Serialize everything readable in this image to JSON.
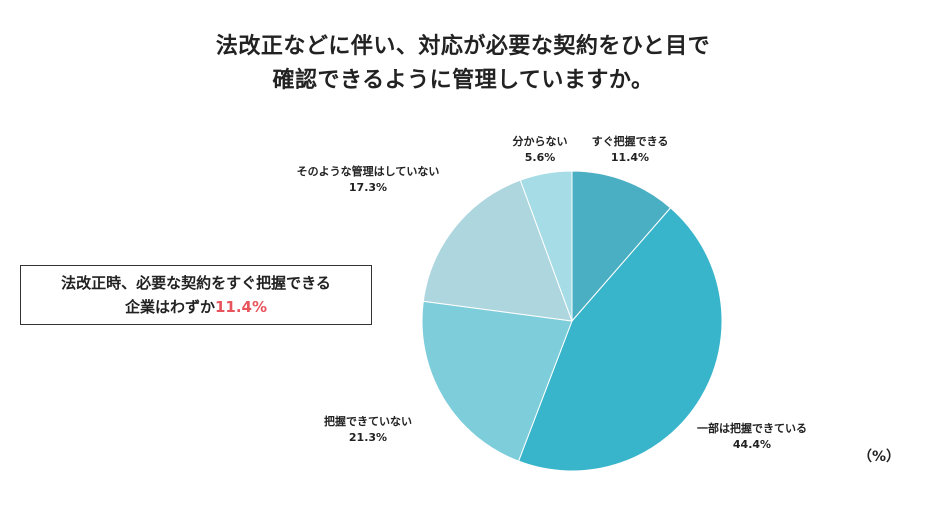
{
  "title": {
    "line1": "法改正などに伴い、対応が必要な契約をひと目で",
    "line2": "確認できるように管理していますか。"
  },
  "callout": {
    "line1": "法改正時、必要な契約をすぐ把握できる",
    "line2_prefix": "企業はわずか",
    "line2_highlight": "11.4%"
  },
  "unit_label": "（%）",
  "colors": {
    "highlight": "#e8545c",
    "slices": [
      "#4bafc4",
      "#38b5cb",
      "#7ecddb",
      "#aed6df",
      "#a6dce6"
    ]
  },
  "chart_data": {
    "type": "pie",
    "start_angle_deg": 0,
    "direction": "clockwise",
    "slices": [
      {
        "label": "すぐ把握できる",
        "value": 11.4,
        "value_label": "11.4%"
      },
      {
        "label": "一部は把握できている",
        "value": 44.4,
        "value_label": "44.4%"
      },
      {
        "label": "把握できていない",
        "value": 21.3,
        "value_label": "21.3%"
      },
      {
        "label": "そのような管理はしていない",
        "value": 17.3,
        "value_label": "17.3%"
      },
      {
        "label": "分からない",
        "value": 5.6,
        "value_label": "5.6%"
      }
    ]
  }
}
